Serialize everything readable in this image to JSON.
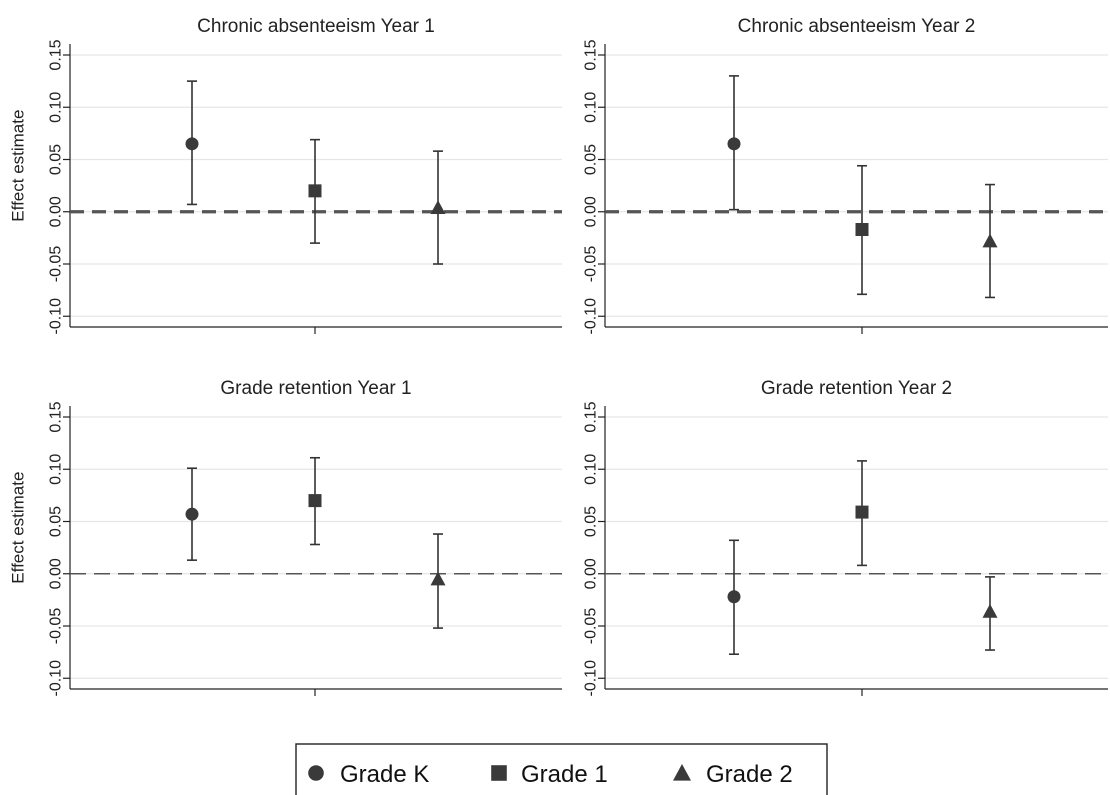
{
  "chart_data": [
    {
      "type": "scatter",
      "title": "Chronic absenteeism Year 1",
      "ylabel": "Effect estimate",
      "ylim": [
        -0.1,
        0.15
      ],
      "yticks": [
        "-0.10",
        "-0.05",
        "0.00",
        "0.05",
        "0.10",
        "0.15"
      ],
      "grid": true,
      "reference_line": 0,
      "series": [
        {
          "name": "Grade K",
          "estimate": 0.065,
          "ci_low": 0.007,
          "ci_high": 0.125
        },
        {
          "name": "Grade 1",
          "estimate": 0.02,
          "ci_low": -0.03,
          "ci_high": 0.069
        },
        {
          "name": "Grade 2",
          "estimate": 0.004,
          "ci_low": -0.05,
          "ci_high": 0.058
        }
      ]
    },
    {
      "type": "scatter",
      "title": "Chronic absenteeism Year 2",
      "ylabel": "",
      "ylim": [
        -0.1,
        0.15
      ],
      "yticks": [
        "-0.10",
        "-0.05",
        "0.00",
        "0.05",
        "0.10",
        "0.15"
      ],
      "grid": true,
      "reference_line": 0,
      "series": [
        {
          "name": "Grade K",
          "estimate": 0.065,
          "ci_low": 0.002,
          "ci_high": 0.13
        },
        {
          "name": "Grade 1",
          "estimate": -0.017,
          "ci_low": -0.079,
          "ci_high": 0.044
        },
        {
          "name": "Grade 2",
          "estimate": -0.028,
          "ci_low": -0.082,
          "ci_high": 0.026
        }
      ]
    },
    {
      "type": "scatter",
      "title": "Grade retention Year 1",
      "ylabel": "Effect estimate",
      "ylim": [
        -0.1,
        0.15
      ],
      "yticks": [
        "-0.10",
        "-0.05",
        "0.00",
        "0.05",
        "0.10",
        "0.15"
      ],
      "grid": true,
      "reference_line": 0,
      "series": [
        {
          "name": "Grade K",
          "estimate": 0.057,
          "ci_low": 0.013,
          "ci_high": 0.101
        },
        {
          "name": "Grade 1",
          "estimate": 0.07,
          "ci_low": 0.028,
          "ci_high": 0.111
        },
        {
          "name": "Grade 2",
          "estimate": -0.005,
          "ci_low": -0.052,
          "ci_high": 0.038
        }
      ]
    },
    {
      "type": "scatter",
      "title": "Grade retention Year 2",
      "ylabel": "",
      "ylim": [
        -0.1,
        0.15
      ],
      "yticks": [
        "-0.10",
        "-0.05",
        "0.00",
        "0.05",
        "0.10",
        "0.15"
      ],
      "grid": true,
      "reference_line": 0,
      "series": [
        {
          "name": "Grade K",
          "estimate": -0.022,
          "ci_low": -0.077,
          "ci_high": 0.032
        },
        {
          "name": "Grade 1",
          "estimate": 0.059,
          "ci_low": 0.008,
          "ci_high": 0.108
        },
        {
          "name": "Grade 2",
          "estimate": -0.036,
          "ci_low": -0.073,
          "ci_high": -0.003
        }
      ]
    }
  ],
  "legend": {
    "position": "bottom-center",
    "items": [
      {
        "label": "Grade K",
        "marker": "circle-icon"
      },
      {
        "label": "Grade 1",
        "marker": "square-icon"
      },
      {
        "label": "Grade 2",
        "marker": "triangle-icon"
      }
    ]
  },
  "colors": {
    "marker": "#3a3a3a",
    "error_bar": "#333333",
    "zero_line": "#666666",
    "grid": "#e6e6e6"
  }
}
